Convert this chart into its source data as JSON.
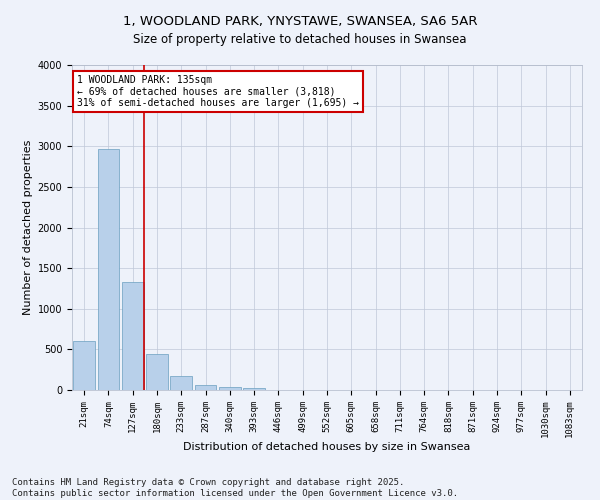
{
  "title_line1": "1, WOODLAND PARK, YNYSTAWE, SWANSEA, SA6 5AR",
  "title_line2": "Size of property relative to detached houses in Swansea",
  "xlabel": "Distribution of detached houses by size in Swansea",
  "ylabel": "Number of detached properties",
  "bar_color": "#b8d0ea",
  "bar_edge_color": "#6a9fc0",
  "background_color": "#eef2fa",
  "vline_color": "#cc0000",
  "vline_x_idx": 2,
  "annotation_text": "1 WOODLAND PARK: 135sqm\n← 69% of detached houses are smaller (3,818)\n31% of semi-detached houses are larger (1,695) →",
  "annotation_box_facecolor": "#ffffff",
  "annotation_box_edgecolor": "#cc0000",
  "categories": [
    "21sqm",
    "74sqm",
    "127sqm",
    "180sqm",
    "233sqm",
    "287sqm",
    "340sqm",
    "393sqm",
    "446sqm",
    "499sqm",
    "552sqm",
    "605sqm",
    "658sqm",
    "711sqm",
    "764sqm",
    "818sqm",
    "871sqm",
    "924sqm",
    "977sqm",
    "1030sqm",
    "1083sqm"
  ],
  "values": [
    600,
    2970,
    1330,
    440,
    175,
    65,
    38,
    25,
    0,
    0,
    0,
    0,
    0,
    0,
    0,
    0,
    0,
    0,
    0,
    0,
    0
  ],
  "ylim": [
    0,
    4000
  ],
  "yticks": [
    0,
    500,
    1000,
    1500,
    2000,
    2500,
    3000,
    3500,
    4000
  ],
  "footer": "Contains HM Land Registry data © Crown copyright and database right 2025.\nContains public sector information licensed under the Open Government Licence v3.0.",
  "title_fontsize": 9.5,
  "subtitle_fontsize": 8.5,
  "axis_label_fontsize": 8,
  "tick_fontsize": 6.5,
  "annotation_fontsize": 7,
  "footer_fontsize": 6.5
}
